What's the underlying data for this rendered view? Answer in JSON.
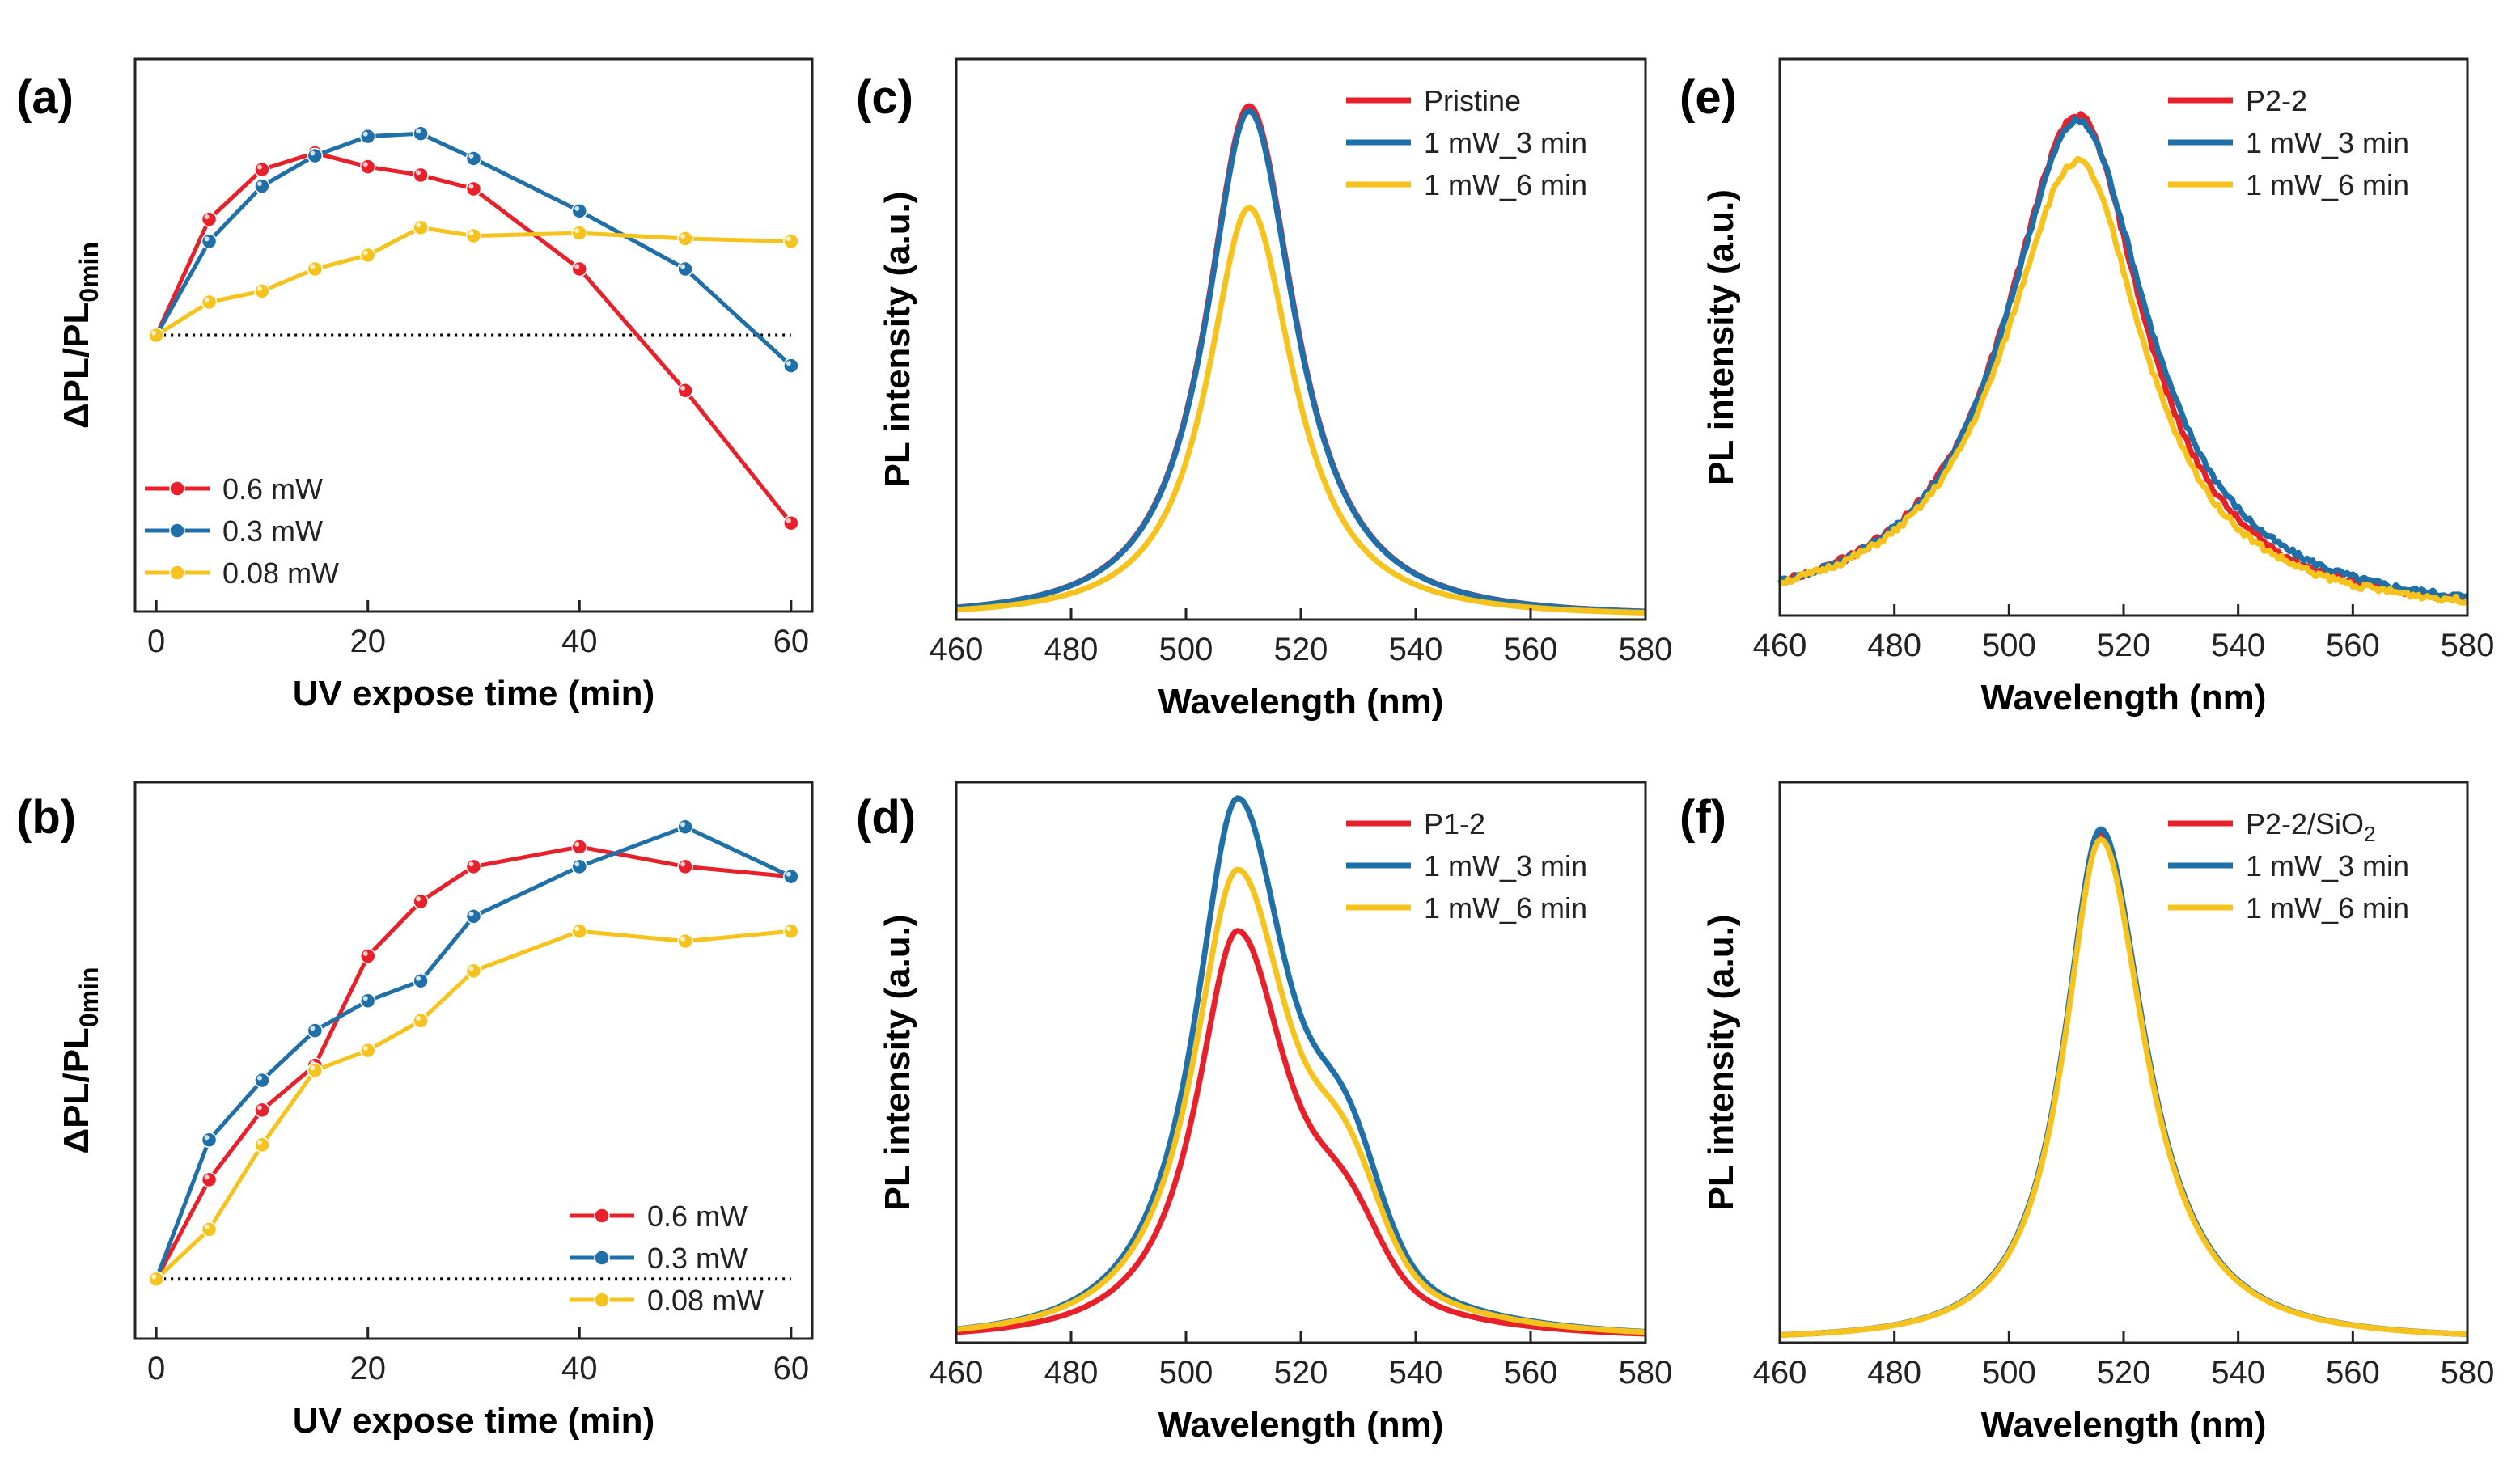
{
  "colors": {
    "red": "#e8202a",
    "blue": "#1f6fa8",
    "yellow": "#f6c21c",
    "axis": "#222222",
    "baseline": "#000000"
  },
  "chart_data": [
    {
      "id": "a",
      "panel_label": "(a)",
      "type": "line",
      "xlabel": "UV expose time (min)",
      "ylabel_main": "ΔPL/PL",
      "ylabel_sub": "0min",
      "xlim": [
        -2,
        62
      ],
      "ylim": [
        -1.0,
        1.0
      ],
      "xticks": [
        0,
        20,
        40,
        60
      ],
      "yticks": [],
      "x": [
        0,
        5,
        10,
        15,
        20,
        25,
        30,
        40,
        50,
        60
      ],
      "baseline": 0.0,
      "markers": true,
      "legend_position": "bottom-left",
      "series": [
        {
          "name": "0.6 mW",
          "color": "#e8202a",
          "values": [
            0,
            0.42,
            0.6,
            0.66,
            0.61,
            0.58,
            0.53,
            0.24,
            -0.2,
            -0.68
          ]
        },
        {
          "name": "0.3 mW",
          "color": "#1f6fa8",
          "values": [
            0,
            0.34,
            0.54,
            0.65,
            0.72,
            0.73,
            0.64,
            0.45,
            0.24,
            -0.11
          ]
        },
        {
          "name": "0.08 mW",
          "color": "#f6c21c",
          "values": [
            0,
            0.12,
            0.16,
            0.24,
            0.29,
            0.39,
            0.36,
            0.37,
            0.35,
            0.34
          ]
        }
      ]
    },
    {
      "id": "b",
      "panel_label": "(b)",
      "type": "line",
      "xlabel": "UV expose time (min)",
      "ylabel_main": "ΔPL/PL",
      "ylabel_sub": "0min",
      "xlim": [
        -2,
        62
      ],
      "ylim": [
        -0.12,
        1.0
      ],
      "xticks": [
        0,
        20,
        40,
        60
      ],
      "yticks": [],
      "x": [
        0,
        5,
        10,
        15,
        20,
        25,
        30,
        40,
        50,
        60
      ],
      "baseline": 0.0,
      "markers": true,
      "legend_position": "bottom-right",
      "series": [
        {
          "name": "0.6 mW",
          "color": "#e8202a",
          "values": [
            0,
            0.2,
            0.34,
            0.43,
            0.65,
            0.76,
            0.83,
            0.87,
            0.83,
            0.81
          ]
        },
        {
          "name": "0.3 mW",
          "color": "#1f6fa8",
          "values": [
            0,
            0.28,
            0.4,
            0.5,
            0.56,
            0.6,
            0.73,
            0.83,
            0.91,
            0.81
          ]
        },
        {
          "name": "0.08 mW",
          "color": "#f6c21c",
          "values": [
            0,
            0.1,
            0.27,
            0.42,
            0.46,
            0.52,
            0.62,
            0.7,
            0.68,
            0.7
          ]
        }
      ]
    },
    {
      "id": "c",
      "panel_label": "(c)",
      "type": "line",
      "xlabel": "Wavelength (nm)",
      "ylabel_main": "PL intensity (a.u.)",
      "ylabel_sub": "",
      "xlim": [
        460,
        580
      ],
      "ylim": [
        0,
        1.1
      ],
      "xticks": [
        460,
        480,
        500,
        520,
        540,
        560,
        580
      ],
      "yticks": [],
      "markers": false,
      "legend_position": "top-right",
      "series": [
        {
          "name": "Pristine",
          "color": "#e8202a",
          "legend_sub": "",
          "peak": 511,
          "amp": 1.0,
          "wL": 13.5,
          "wR": 14.5,
          "noise": 0
        },
        {
          "name": "1 mW_3 min",
          "color": "#1f6fa8",
          "legend_sub": "",
          "peak": 511,
          "amp": 0.99,
          "wL": 13.5,
          "wR": 14.5,
          "noise": 0
        },
        {
          "name": "1 mW_6 min",
          "color": "#f6c21c",
          "legend_sub": "",
          "peak": 511,
          "amp": 0.8,
          "wL": 13.0,
          "wR": 14.0,
          "noise": 0
        }
      ]
    },
    {
      "id": "d",
      "panel_label": "(d)",
      "type": "line",
      "xlabel": "Wavelength (nm)",
      "ylabel_main": "PL intensity (a.u.)",
      "ylabel_sub": "",
      "xlim": [
        460,
        580
      ],
      "ylim": [
        0,
        1.1
      ],
      "xticks": [
        460,
        480,
        500,
        520,
        540,
        560,
        580
      ],
      "yticks": [],
      "markers": false,
      "legend_position": "top-right",
      "series": [
        {
          "name": "P1-2",
          "color": "#e8202a",
          "legend_sub": "",
          "peak": 509,
          "amp": 0.8,
          "wL": 13.0,
          "wR": 17.0,
          "shoulder": {
            "pos": 528,
            "amp": 0.12,
            "w": 8
          },
          "noise": 0
        },
        {
          "name": "1 mW_3 min",
          "color": "#1f6fa8",
          "legend_sub": "",
          "peak": 509,
          "amp": 1.06,
          "wL": 13.5,
          "wR": 17.5,
          "shoulder": {
            "pos": 528,
            "amp": 0.2,
            "w": 8
          },
          "noise": 0
        },
        {
          "name": "1 mW_6 min",
          "color": "#f6c21c",
          "legend_sub": "",
          "peak": 509,
          "amp": 0.92,
          "wL": 14.0,
          "wR": 18.0,
          "shoulder": {
            "pos": 528,
            "amp": 0.17,
            "w": 8
          },
          "noise": 0
        }
      ]
    },
    {
      "id": "e",
      "panel_label": "(e)",
      "type": "line",
      "xlabel": "Wavelength (nm)",
      "ylabel_main": "PL intensity (a.u.)",
      "ylabel_sub": "",
      "xlim": [
        460,
        580
      ],
      "ylim": [
        0,
        1.1
      ],
      "xticks": [
        460,
        480,
        500,
        520,
        540,
        560,
        580
      ],
      "yticks": [],
      "markers": false,
      "legend_position": "top-right",
      "series": [
        {
          "name": "P2-2",
          "color": "#e8202a",
          "legend_sub": "",
          "peak": 512,
          "amp": 0.98,
          "wL": 23.0,
          "wR": 21.0,
          "noise": 0.006
        },
        {
          "name": "1 mW_3 min",
          "color": "#1f6fa8",
          "legend_sub": "",
          "peak": 512,
          "amp": 0.97,
          "wL": 23.0,
          "wR": 22.5,
          "noise": 0.006
        },
        {
          "name": "1 mW_6 min",
          "color": "#f6c21c",
          "legend_sub": "",
          "peak": 512,
          "amp": 0.89,
          "wL": 23.5,
          "wR": 21.0,
          "noise": 0.006
        }
      ]
    },
    {
      "id": "f",
      "panel_label": "(f)",
      "type": "line",
      "xlabel": "Wavelength (nm)",
      "ylabel_main": "PL intensity (a.u.)",
      "ylabel_sub": "",
      "xlim": [
        460,
        580
      ],
      "ylim": [
        0,
        1.1
      ],
      "xticks": [
        460,
        480,
        500,
        520,
        540,
        560,
        580
      ],
      "yticks": [],
      "markers": false,
      "legend_position": "top-right",
      "series": [
        {
          "name": "P2-2/SiO",
          "color": "#e8202a",
          "legend_sub": "2",
          "peak": 516,
          "amp": 0.99,
          "wL": 11.5,
          "wR": 14.0,
          "noise": 0
        },
        {
          "name": "1 mW_3 min",
          "color": "#1f6fa8",
          "legend_sub": "",
          "peak": 516,
          "amp": 1.0,
          "wL": 11.5,
          "wR": 14.0,
          "noise": 0
        },
        {
          "name": "1 mW_6 min",
          "color": "#f6c21c",
          "legend_sub": "",
          "peak": 516,
          "amp": 0.98,
          "wL": 11.5,
          "wR": 14.0,
          "noise": 0
        }
      ]
    }
  ]
}
